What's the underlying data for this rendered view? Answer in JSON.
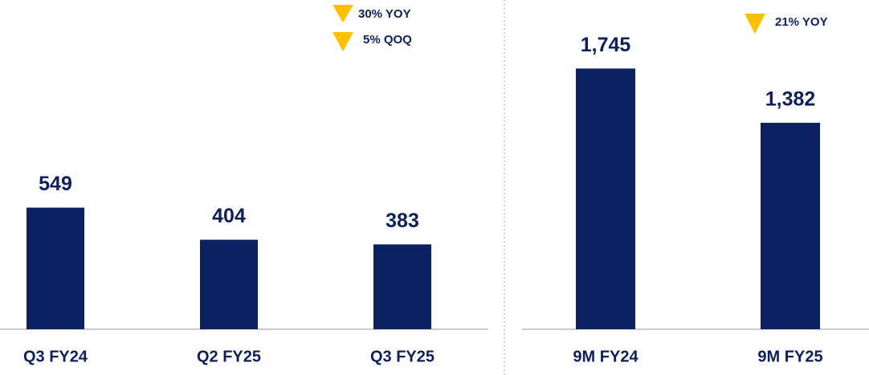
{
  "chart_data": [
    {
      "type": "bar",
      "categories": [
        "Q3 FY24",
        "Q2 FY25",
        "Q3 FY25"
      ],
      "values": [
        549,
        404,
        383
      ],
      "color": "#0b2161",
      "ylim": [
        0,
        1450
      ],
      "annotations": [
        "30% YOY",
        "5% QOQ"
      ]
    },
    {
      "type": "bar",
      "categories": [
        "9M FY24",
        "9M FY25"
      ],
      "values": [
        1745,
        1382
      ],
      "value_labels": [
        "1,745",
        "1,382"
      ],
      "color": "#0b2161",
      "ylim": [
        0,
        2150
      ],
      "annotations": [
        "21% YOY"
      ]
    }
  ]
}
